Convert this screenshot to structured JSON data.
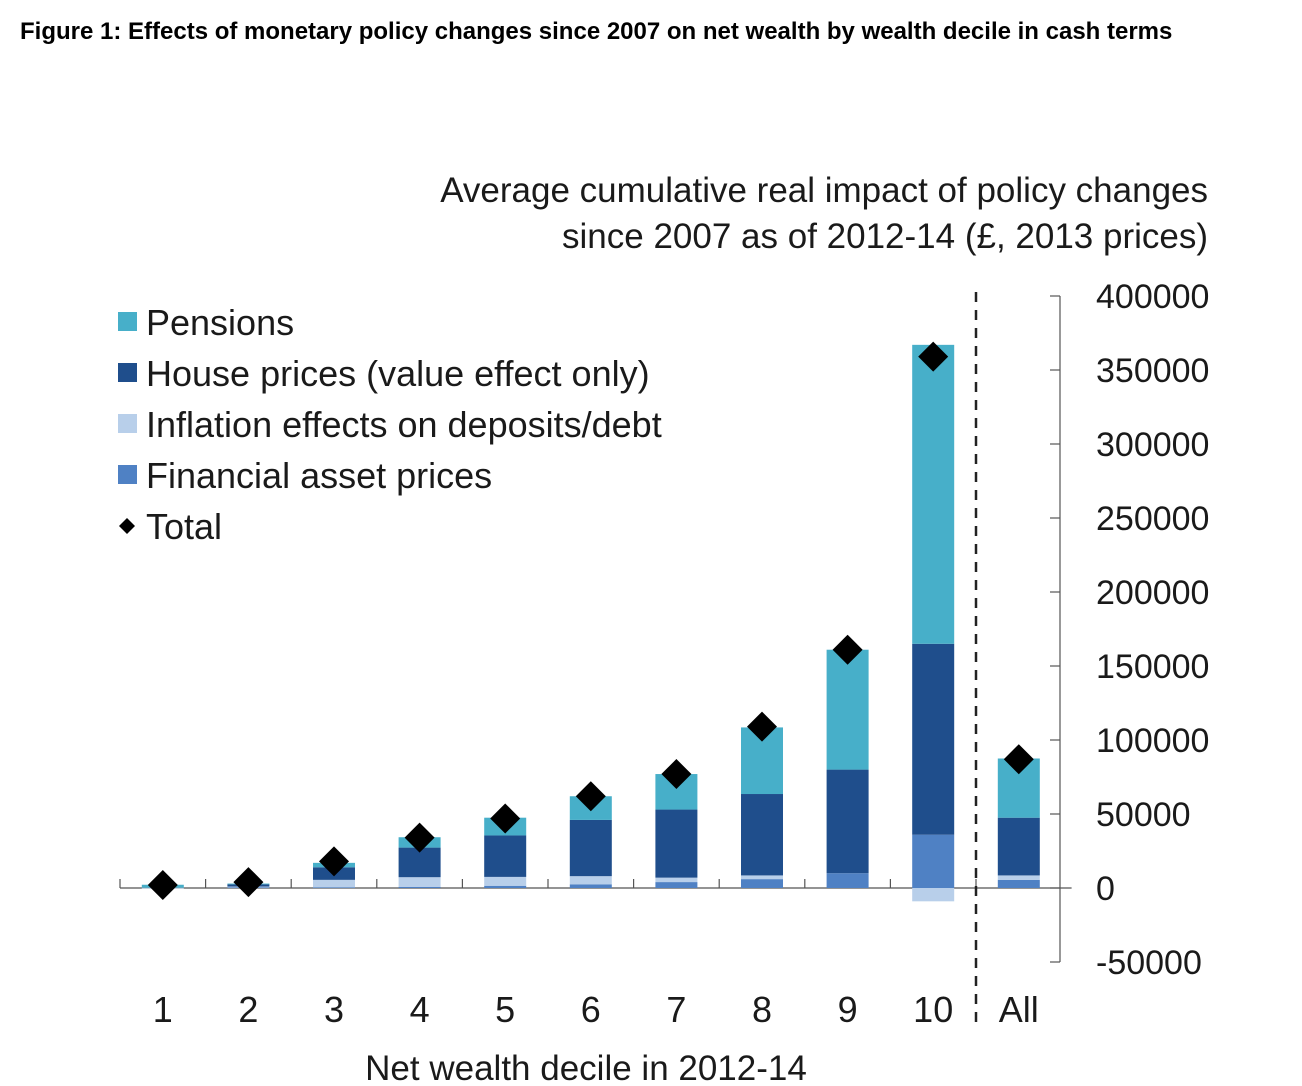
{
  "figure": {
    "title": "Figure 1: Effects of monetary policy changes since 2007 on net wealth by wealth decile in cash terms"
  },
  "chart_data": {
    "type": "bar",
    "stacked": true,
    "title": "",
    "subtitle_lines": [
      "Average cumulative real  impact of policy changes",
      "since 2007 as of 2012-14 (£, 2013 prices)"
    ],
    "xlabel": "Net wealth decile in 2012-14",
    "ylabel": "",
    "ylim": [
      -50000,
      400000
    ],
    "yticks": [
      -50000,
      0,
      50000,
      100000,
      150000,
      200000,
      250000,
      300000,
      350000,
      400000
    ],
    "y_axis_side": "right",
    "categories": [
      "1",
      "2",
      "3",
      "4",
      "5",
      "6",
      "7",
      "8",
      "9",
      "10",
      "All"
    ],
    "separator_before": "All",
    "legend_position": "top-left",
    "series": [
      {
        "name": "Financial asset prices",
        "color": "#4f81c4",
        "values": [
          0,
          500,
          500,
          800,
          1500,
          2500,
          4000,
          6000,
          10000,
          36000,
          5500
        ]
      },
      {
        "name": "Inflation effects on deposits/debt",
        "color": "#b8cfea",
        "values": [
          200,
          500,
          5000,
          6500,
          6000,
          5500,
          3000,
          2500,
          0,
          -9000,
          3000
        ]
      },
      {
        "name": "House prices (value effect only)",
        "color": "#1f4e8c",
        "values": [
          0,
          1500,
          8500,
          20000,
          28000,
          38000,
          46000,
          55000,
          70000,
          129000,
          39000
        ]
      },
      {
        "name": "Pensions",
        "color": "#47afc9",
        "values": [
          2000,
          500,
          3000,
          7000,
          12000,
          16000,
          24000,
          45000,
          81000,
          202000,
          40000
        ]
      }
    ],
    "totals": {
      "name": "Total",
      "color": "#000000",
      "values": [
        2000,
        4000,
        18000,
        34000,
        47000,
        62000,
        77000,
        109000,
        161000,
        359000,
        87000
      ]
    },
    "legend_order": [
      "Pensions",
      "House prices (value effect only)",
      "Inflation effects on deposits/debt",
      "Financial asset prices",
      "Total"
    ]
  }
}
